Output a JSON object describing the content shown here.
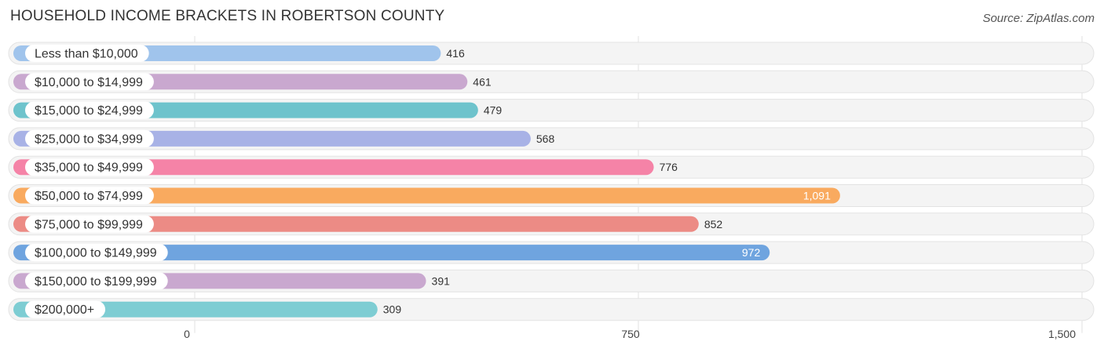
{
  "header": {
    "title": "HOUSEHOLD INCOME BRACKETS IN ROBERTSON COUNTY",
    "source": "Source: ZipAtlas.com"
  },
  "chart_data": {
    "type": "bar",
    "orientation": "horizontal",
    "title": "HOUSEHOLD INCOME BRACKETS IN ROBERTSON COUNTY",
    "xlabel": "",
    "ylabel": "",
    "xlim": [
      0,
      1500
    ],
    "ticks": [
      0,
      750,
      1500
    ],
    "tick_labels": [
      "0",
      "750",
      "1,500"
    ],
    "grid": true,
    "categories": [
      "Less than $10,000",
      "$10,000 to $14,999",
      "$15,000 to $24,999",
      "$25,000 to $34,999",
      "$35,000 to $49,999",
      "$50,000 to $74,999",
      "$75,000 to $99,999",
      "$100,000 to $149,999",
      "$150,000 to $199,999",
      "$200,000+"
    ],
    "values": [
      416,
      461,
      479,
      568,
      776,
      1091,
      852,
      972,
      391,
      309
    ],
    "value_labels": [
      "416",
      "461",
      "479",
      "568",
      "776",
      "1,091",
      "852",
      "972",
      "391",
      "309"
    ],
    "colors": [
      "#a0c4ec",
      "#c9a8cf",
      "#6ec3cc",
      "#a8b2e6",
      "#f583a7",
      "#f9aa5f",
      "#ec8b85",
      "#6fa4df",
      "#c9a8cf",
      "#7ecdd3"
    ]
  }
}
